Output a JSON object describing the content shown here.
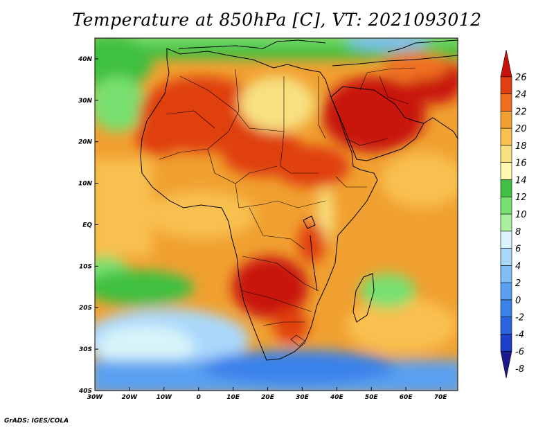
{
  "title": "Temperature at 850hPa [C], VT: 2021093012",
  "credit": "GrADS: IGES/COLA",
  "map": {
    "lon_range": [
      -30,
      75
    ],
    "lat_range": [
      -40,
      45
    ],
    "lon_ticks": [
      "30W",
      "20W",
      "10W",
      "0",
      "10E",
      "20E",
      "30E",
      "40E",
      "50E",
      "60E",
      "70E"
    ],
    "lat_ticks": [
      "40S",
      "30S",
      "20S",
      "10S",
      "EQ",
      "10N",
      "20N",
      "30N",
      "40N"
    ],
    "variable": "Temperature at 850hPa",
    "units": "C",
    "valid_time": "2021093012"
  },
  "colorbar": {
    "levels": [
      "-8",
      "-6",
      "-4",
      "-2",
      "0",
      "2",
      "4",
      "6",
      "8",
      "10",
      "12",
      "14",
      "16",
      "18",
      "20",
      "22",
      "24",
      "26"
    ],
    "colors": [
      "#1a1a8c",
      "#1e3fc8",
      "#2a64e0",
      "#3a82ea",
      "#5aa0f0",
      "#80bff5",
      "#aad8fa",
      "#d8f4fa",
      "#a8f0a0",
      "#78e070",
      "#40c040",
      "#fff8b0",
      "#f8e080",
      "#f8c050",
      "#f0a030",
      "#f07020",
      "#e04010",
      "#c81408"
    ],
    "extend": "both"
  }
}
